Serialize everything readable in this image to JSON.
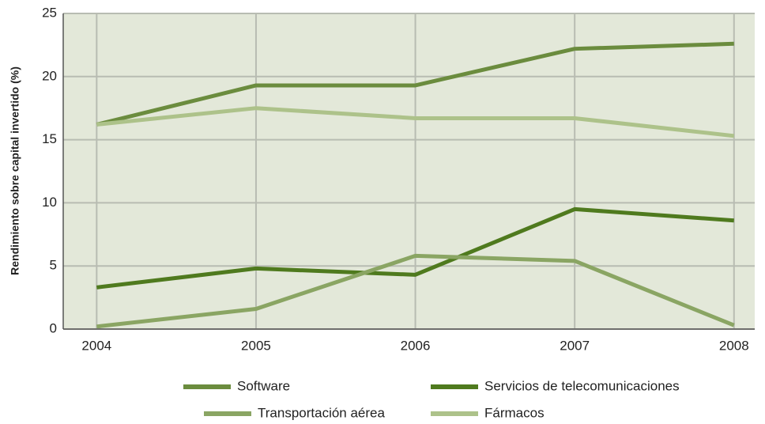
{
  "chart_data": {
    "type": "line",
    "y_label": "Rendimiento sobre capital invertido (%)",
    "x": [
      2004,
      2005,
      2006,
      2007,
      2008
    ],
    "xlim": [
      2003.79,
      2008.13
    ],
    "xticks": [
      2004,
      2005,
      2006,
      2007,
      2008
    ],
    "ylim": [
      0,
      25
    ],
    "yticks": [
      0,
      5,
      10,
      15,
      20,
      25
    ],
    "grid": true,
    "series": [
      {
        "name": "Software",
        "color": "#6b8c3e",
        "values": [
          16.2,
          19.3,
          19.3,
          22.2,
          22.6
        ]
      },
      {
        "name": "Servicios de telecomunicaciones",
        "color": "#4f7a1e",
        "values": [
          3.3,
          4.8,
          4.3,
          9.5,
          8.6
        ]
      },
      {
        "name": "Transportación aérea",
        "color": "#8aa563",
        "values": [
          0.2,
          1.6,
          5.8,
          5.4,
          0.3
        ]
      },
      {
        "name": "Fármacos",
        "color": "#adc28a",
        "values": [
          16.2,
          17.5,
          16.7,
          16.7,
          15.3
        ]
      }
    ]
  }
}
